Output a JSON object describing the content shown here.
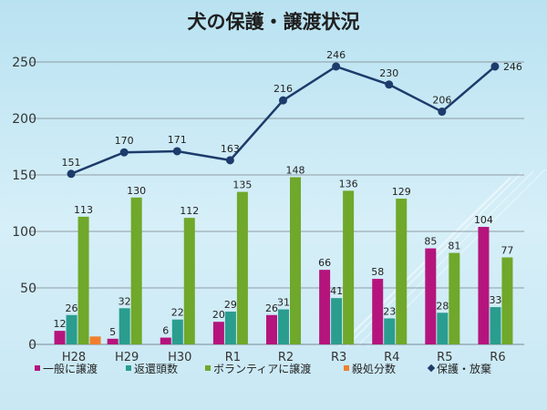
{
  "chart_data": {
    "type": "bar",
    "title": "犬の保護・譲渡状況",
    "categories": [
      "H28",
      "H29",
      "H30",
      "R1",
      "R2",
      "R3",
      "R4",
      "R5",
      "R6"
    ],
    "ylim": [
      0,
      250
    ],
    "yticks": [
      0,
      50,
      100,
      150,
      200,
      250
    ],
    "grid": true,
    "legend_position": "bottom",
    "series": [
      {
        "name": "一般に譲渡",
        "type": "bar",
        "color": "#b5147d",
        "values": [
          12,
          5,
          6,
          20,
          26,
          66,
          58,
          85,
          104
        ]
      },
      {
        "name": "返還頭数",
        "type": "bar",
        "color": "#2a9d8f",
        "values": [
          26,
          32,
          22,
          29,
          31,
          41,
          23,
          28,
          33
        ]
      },
      {
        "name": "ボランティアに譲渡",
        "type": "bar",
        "color": "#6fa82a",
        "values": [
          113,
          130,
          112,
          135,
          148,
          136,
          129,
          81,
          77
        ]
      },
      {
        "name": "殺処分数",
        "type": "bar",
        "color": "#f07f2d",
        "values": [
          7,
          0,
          0,
          0,
          0,
          0,
          0,
          0,
          0
        ]
      },
      {
        "name": "保護・放棄",
        "type": "line",
        "color": "#1d3b6b",
        "values": [
          151,
          170,
          171,
          163,
          216,
          246,
          230,
          206,
          246
        ]
      }
    ]
  }
}
